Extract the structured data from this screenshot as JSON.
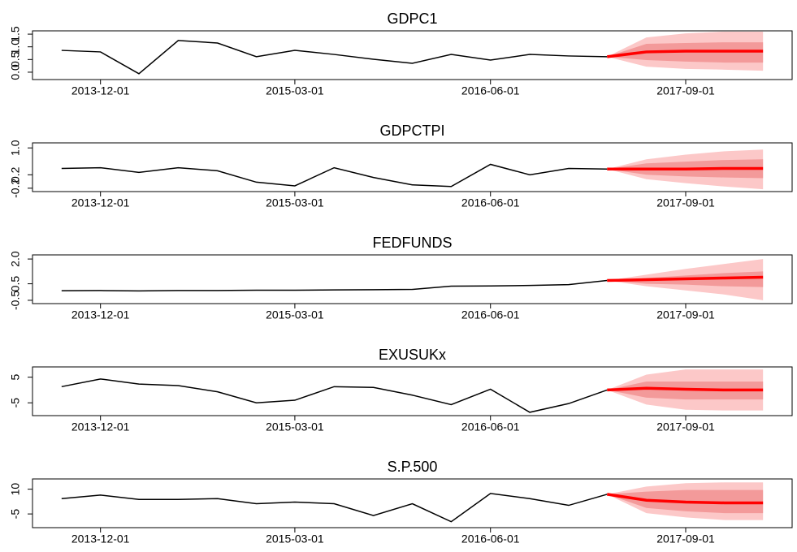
{
  "chart_data": [
    {
      "type": "fan",
      "title": "GDPC1",
      "x": [
        "2013-09-01",
        "2013-12-01",
        "2014-03-01",
        "2014-06-01",
        "2014-09-01",
        "2014-12-01",
        "2015-03-01",
        "2015-06-01",
        "2015-09-01",
        "2015-12-01",
        "2016-03-01",
        "2016-06-01",
        "2016-09-01",
        "2016-12-01",
        "2017-03-01",
        "2017-06-01",
        "2017-09-01",
        "2017-12-01",
        "2018-03-01"
      ],
      "values": [
        0.86,
        0.8,
        -0.06,
        1.25,
        1.15,
        0.61,
        0.86,
        0.7,
        0.51,
        0.35,
        0.7,
        0.48,
        0.7,
        0.64,
        0.61,
        null,
        null,
        null,
        null
      ],
      "forecast": [
        null,
        null,
        null,
        null,
        null,
        null,
        null,
        null,
        null,
        null,
        null,
        null,
        null,
        null,
        0.61,
        0.8,
        0.83,
        0.83,
        0.83
      ],
      "lower80": [
        null,
        null,
        null,
        null,
        null,
        null,
        null,
        null,
        null,
        null,
        null,
        null,
        null,
        null,
        0.61,
        0.48,
        0.42,
        0.38,
        0.38
      ],
      "upper80": [
        null,
        null,
        null,
        null,
        null,
        null,
        null,
        null,
        null,
        null,
        null,
        null,
        null,
        null,
        0.61,
        1.12,
        1.15,
        1.18,
        1.18
      ],
      "lower95": [
        null,
        null,
        null,
        null,
        null,
        null,
        null,
        null,
        null,
        null,
        null,
        null,
        null,
        null,
        0.61,
        0.22,
        0.13,
        0.1,
        0.06
      ],
      "upper95": [
        null,
        null,
        null,
        null,
        null,
        null,
        null,
        null,
        null,
        null,
        null,
        null,
        null,
        null,
        0.61,
        1.37,
        1.53,
        1.6,
        1.6
      ],
      "ylim": [
        -0.29,
        1.63
      ],
      "yticks": [
        {
          "value": 0,
          "label": "0.0"
        },
        0.5,
        {
          "value": 1,
          "label": "1.0"
        },
        1.5
      ],
      "xticks": [
        "2013-12-01",
        "2015-03-01",
        "2016-06-01",
        "2017-09-01"
      ],
      "color": "#000000",
      "forecast_color": "#ff0000",
      "band80_color": "#f39a9a",
      "band95_color": "#fcc8c8"
    },
    {
      "type": "fan",
      "title": "GDPCTPI",
      "x": [
        "2013-09-01",
        "2013-12-01",
        "2014-03-01",
        "2014-06-01",
        "2014-09-01",
        "2014-12-01",
        "2015-03-01",
        "2015-06-01",
        "2015-09-01",
        "2015-12-01",
        "2016-03-01",
        "2016-06-01",
        "2016-09-01",
        "2016-12-01",
        "2017-03-01",
        "2017-06-01",
        "2017-09-01",
        "2017-12-01",
        "2018-03-01"
      ],
      "values": [
        0.39,
        0.41,
        0.27,
        0.41,
        0.32,
        -0.02,
        -0.13,
        0.41,
        0.12,
        -0.1,
        -0.15,
        0.51,
        0.2,
        0.39,
        0.37,
        null,
        null,
        null,
        null
      ],
      "forecast": [
        null,
        null,
        null,
        null,
        null,
        null,
        null,
        null,
        null,
        null,
        null,
        null,
        null,
        null,
        0.37,
        0.37,
        0.37,
        0.39,
        0.39
      ],
      "lower80": [
        null,
        null,
        null,
        null,
        null,
        null,
        null,
        null,
        null,
        null,
        null,
        null,
        null,
        null,
        0.37,
        0.2,
        0.15,
        0.12,
        0.1
      ],
      "upper80": [
        null,
        null,
        null,
        null,
        null,
        null,
        null,
        null,
        null,
        null,
        null,
        null,
        null,
        null,
        0.37,
        0.54,
        0.59,
        0.64,
        0.66
      ],
      "lower95": [
        null,
        null,
        null,
        null,
        null,
        null,
        null,
        null,
        null,
        null,
        null,
        null,
        null,
        null,
        0.37,
        0.07,
        -0.05,
        -0.15,
        -0.23
      ],
      "upper95": [
        null,
        null,
        null,
        null,
        null,
        null,
        null,
        null,
        null,
        null,
        null,
        null,
        null,
        null,
        0.37,
        0.66,
        0.8,
        0.9,
        0.95
      ],
      "ylim": [
        -0.3,
        1.15
      ],
      "yticks": [
        -0.2,
        0.2,
        {
          "value": 1,
          "label": "1.0"
        }
      ],
      "xticks": [
        "2013-12-01",
        "2015-03-01",
        "2016-06-01",
        "2017-09-01"
      ],
      "color": "#000000",
      "forecast_color": "#ff0000",
      "band80_color": "#f39a9a",
      "band95_color": "#fcc8c8"
    },
    {
      "type": "fan",
      "title": "FEDFUNDS",
      "x": [
        "2013-09-01",
        "2013-12-01",
        "2014-03-01",
        "2014-06-01",
        "2014-09-01",
        "2014-12-01",
        "2015-03-01",
        "2015-06-01",
        "2015-09-01",
        "2015-12-01",
        "2016-03-01",
        "2016-06-01",
        "2016-09-01",
        "2016-12-01",
        "2017-03-01",
        "2017-06-01",
        "2017-09-01",
        "2017-12-01",
        "2018-03-01"
      ],
      "values": [
        0.08,
        0.09,
        0.07,
        0.09,
        0.09,
        0.11,
        0.11,
        0.13,
        0.14,
        0.16,
        0.36,
        0.37,
        0.4,
        0.45,
        0.7,
        null,
        null,
        null,
        null
      ],
      "forecast": [
        null,
        null,
        null,
        null,
        null,
        null,
        null,
        null,
        null,
        null,
        null,
        null,
        null,
        null,
        0.7,
        0.75,
        0.8,
        0.85,
        0.9
      ],
      "lower80": [
        null,
        null,
        null,
        null,
        null,
        null,
        null,
        null,
        null,
        null,
        null,
        null,
        null,
        null,
        0.7,
        0.5,
        0.45,
        0.35,
        0.3
      ],
      "upper80": [
        null,
        null,
        null,
        null,
        null,
        null,
        null,
        null,
        null,
        null,
        null,
        null,
        null,
        null,
        0.7,
        0.85,
        1.0,
        1.15,
        1.25
      ],
      "lower95": [
        null,
        null,
        null,
        null,
        null,
        null,
        null,
        null,
        null,
        null,
        null,
        null,
        null,
        null,
        0.7,
        0.35,
        0.1,
        -0.15,
        -0.5
      ],
      "upper95": [
        null,
        null,
        null,
        null,
        null,
        null,
        null,
        null,
        null,
        null,
        null,
        null,
        null,
        null,
        0.7,
        1.05,
        1.4,
        1.7,
        2.0
      ],
      "ylim": [
        -0.7,
        2.25
      ],
      "yticks": [
        -0.5,
        0.5,
        {
          "value": 2,
          "label": "2.0"
        }
      ],
      "xticks": [
        "2013-12-01",
        "2015-03-01",
        "2016-06-01",
        "2017-09-01"
      ],
      "color": "#000000",
      "forecast_color": "#ff0000",
      "band80_color": "#f39a9a",
      "band95_color": "#fcc8c8"
    },
    {
      "type": "fan",
      "title": "EXUSUKx",
      "x": [
        "2013-09-01",
        "2013-12-01",
        "2014-03-01",
        "2014-06-01",
        "2014-09-01",
        "2014-12-01",
        "2015-03-01",
        "2015-06-01",
        "2015-09-01",
        "2015-12-01",
        "2016-03-01",
        "2016-06-01",
        "2016-09-01",
        "2016-12-01",
        "2017-03-01",
        "2017-06-01",
        "2017-09-01",
        "2017-12-01",
        "2018-03-01"
      ],
      "values": [
        1.3,
        4.3,
        2.3,
        1.7,
        -0.7,
        -5,
        -4,
        1.3,
        1,
        -2,
        -5.7,
        0.3,
        -8.7,
        -5.3,
        0,
        null,
        null,
        null,
        null
      ],
      "forecast": [
        null,
        null,
        null,
        null,
        null,
        null,
        null,
        null,
        null,
        null,
        null,
        null,
        null,
        null,
        0,
        0.7,
        0.3,
        0,
        0
      ],
      "lower80": [
        null,
        null,
        null,
        null,
        null,
        null,
        null,
        null,
        null,
        null,
        null,
        null,
        null,
        null,
        0,
        -3,
        -3.7,
        -3.7,
        -3.7
      ],
      "upper80": [
        null,
        null,
        null,
        null,
        null,
        null,
        null,
        null,
        null,
        null,
        null,
        null,
        null,
        null,
        0,
        3.3,
        3.3,
        3.3,
        3.3
      ],
      "lower95": [
        null,
        null,
        null,
        null,
        null,
        null,
        null,
        null,
        null,
        null,
        null,
        null,
        null,
        null,
        0,
        -5.7,
        -7.7,
        -8,
        -8
      ],
      "upper95": [
        null,
        null,
        null,
        null,
        null,
        null,
        null,
        null,
        null,
        null,
        null,
        null,
        null,
        null,
        0,
        6,
        8,
        8,
        8
      ],
      "ylim": [
        -10,
        9
      ],
      "yticks": [
        -5,
        5
      ],
      "xticks": [
        "2013-12-01",
        "2015-03-01",
        "2016-06-01",
        "2017-09-01"
      ],
      "color": "#000000",
      "forecast_color": "#ff0000",
      "band80_color": "#f39a9a",
      "band95_color": "#fcc8c8"
    },
    {
      "type": "fan",
      "title": "S.P.500",
      "x": [
        "2013-09-01",
        "2013-12-01",
        "2014-03-01",
        "2014-06-01",
        "2014-09-01",
        "2014-12-01",
        "2015-03-01",
        "2015-06-01",
        "2015-09-01",
        "2015-12-01",
        "2016-03-01",
        "2016-06-01",
        "2016-09-01",
        "2016-12-01",
        "2017-03-01",
        "2017-06-01",
        "2017-09-01",
        "2017-12-01",
        "2018-03-01"
      ],
      "values": [
        4.3,
        6.4,
        3.8,
        3.8,
        4.3,
        1.2,
        2.2,
        1.2,
        -6,
        1.2,
        -9.7,
        7.4,
        4.3,
        0.2,
        6.9,
        null,
        null,
        null,
        null
      ],
      "forecast": [
        null,
        null,
        null,
        null,
        null,
        null,
        null,
        null,
        null,
        null,
        null,
        null,
        null,
        null,
        6.9,
        3.3,
        2.2,
        1.7,
        1.7
      ],
      "lower80": [
        null,
        null,
        null,
        null,
        null,
        null,
        null,
        null,
        null,
        null,
        null,
        null,
        null,
        null,
        6.9,
        -1.4,
        -3.4,
        -4.5,
        -4.5
      ],
      "upper80": [
        null,
        null,
        null,
        null,
        null,
        null,
        null,
        null,
        null,
        null,
        null,
        null,
        null,
        null,
        6.9,
        8.5,
        9.5,
        9.5,
        9.5
      ],
      "lower95": [
        null,
        null,
        null,
        null,
        null,
        null,
        null,
        null,
        null,
        null,
        null,
        null,
        null,
        null,
        6.9,
        -4.5,
        -7.1,
        -8.7,
        -8.7
      ],
      "upper95": [
        null,
        null,
        null,
        null,
        null,
        null,
        null,
        null,
        null,
        null,
        null,
        null,
        null,
        null,
        6.9,
        11.6,
        13.6,
        14.1,
        14.1
      ],
      "ylim": [
        -13.3,
        16.2
      ],
      "yticks": [
        -5,
        10
      ],
      "xticks": [
        "2013-12-01",
        "2015-03-01",
        "2016-06-01",
        "2017-09-01"
      ],
      "color": "#000000",
      "forecast_color": "#ff0000",
      "band80_color": "#f39a9a",
      "band95_color": "#fcc8c8"
    }
  ]
}
